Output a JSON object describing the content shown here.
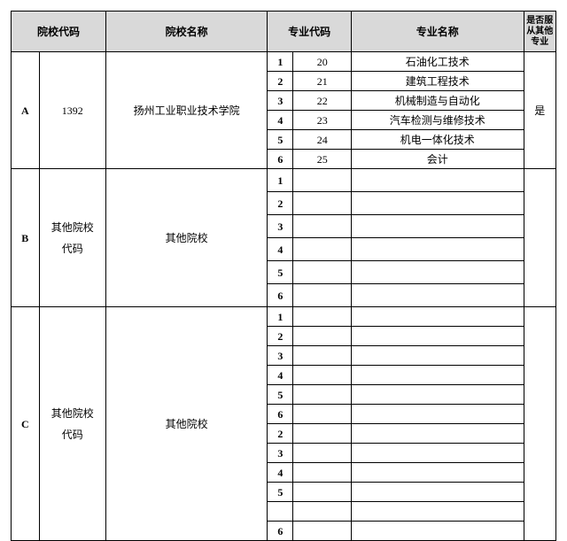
{
  "headers": {
    "school_code": "院校代码",
    "school_name": "院校名称",
    "major_code": "专业代码",
    "major_name": "专业名称",
    "obey": "是否服从其他专业"
  },
  "sections": [
    {
      "letter": "A",
      "school_code": "1392",
      "school_name": "扬州工业职业技术学院",
      "obey": "是",
      "rows": [
        {
          "idx": "1",
          "code": "20",
          "name": "石油化工技术"
        },
        {
          "idx": "2",
          "code": "21",
          "name": "建筑工程技术"
        },
        {
          "idx": "3",
          "code": "22",
          "name": "机械制造与自动化"
        },
        {
          "idx": "4",
          "code": "23",
          "name": "汽车检测与维修技术"
        },
        {
          "idx": "5",
          "code": "24",
          "name": "机电一体化技术"
        },
        {
          "idx": "6",
          "code": "25",
          "name": "会计"
        }
      ]
    },
    {
      "letter": "B",
      "school_code": "其他院校代码",
      "school_name": "其他院校",
      "obey": "",
      "rows": [
        {
          "idx": "1",
          "code": "",
          "name": ""
        },
        {
          "idx": "2",
          "code": "",
          "name": ""
        },
        {
          "idx": "3",
          "code": "",
          "name": ""
        },
        {
          "idx": "4",
          "code": "",
          "name": ""
        },
        {
          "idx": "5",
          "code": "",
          "name": ""
        },
        {
          "idx": "6",
          "code": "",
          "name": ""
        }
      ]
    },
    {
      "letter": "C",
      "school_code": "其他院校代码",
      "school_name": "其他院校",
      "obey": "",
      "rows": [
        {
          "idx": "1",
          "code": "",
          "name": ""
        },
        {
          "idx": "2",
          "code": "",
          "name": ""
        },
        {
          "idx": "3",
          "code": "",
          "name": ""
        },
        {
          "idx": "4",
          "code": "",
          "name": ""
        },
        {
          "idx": "5",
          "code": "",
          "name": ""
        },
        {
          "idx": "6",
          "code": "",
          "name": ""
        },
        {
          "idx": "2",
          "code": "",
          "name": ""
        },
        {
          "idx": "3",
          "code": "",
          "name": ""
        },
        {
          "idx": "4",
          "code": "",
          "name": ""
        },
        {
          "idx": "5",
          "code": "",
          "name": ""
        },
        {
          "idx": "",
          "code": "",
          "name": ""
        },
        {
          "idx": "6",
          "code": "",
          "name": ""
        }
      ]
    }
  ],
  "colors": {
    "header_bg": "#d9d9d9",
    "border": "#000000",
    "background": "#ffffff",
    "text": "#000000"
  },
  "fonts": {
    "base_size_pt": 12,
    "header_weight": "bold",
    "family": "SimSun"
  }
}
